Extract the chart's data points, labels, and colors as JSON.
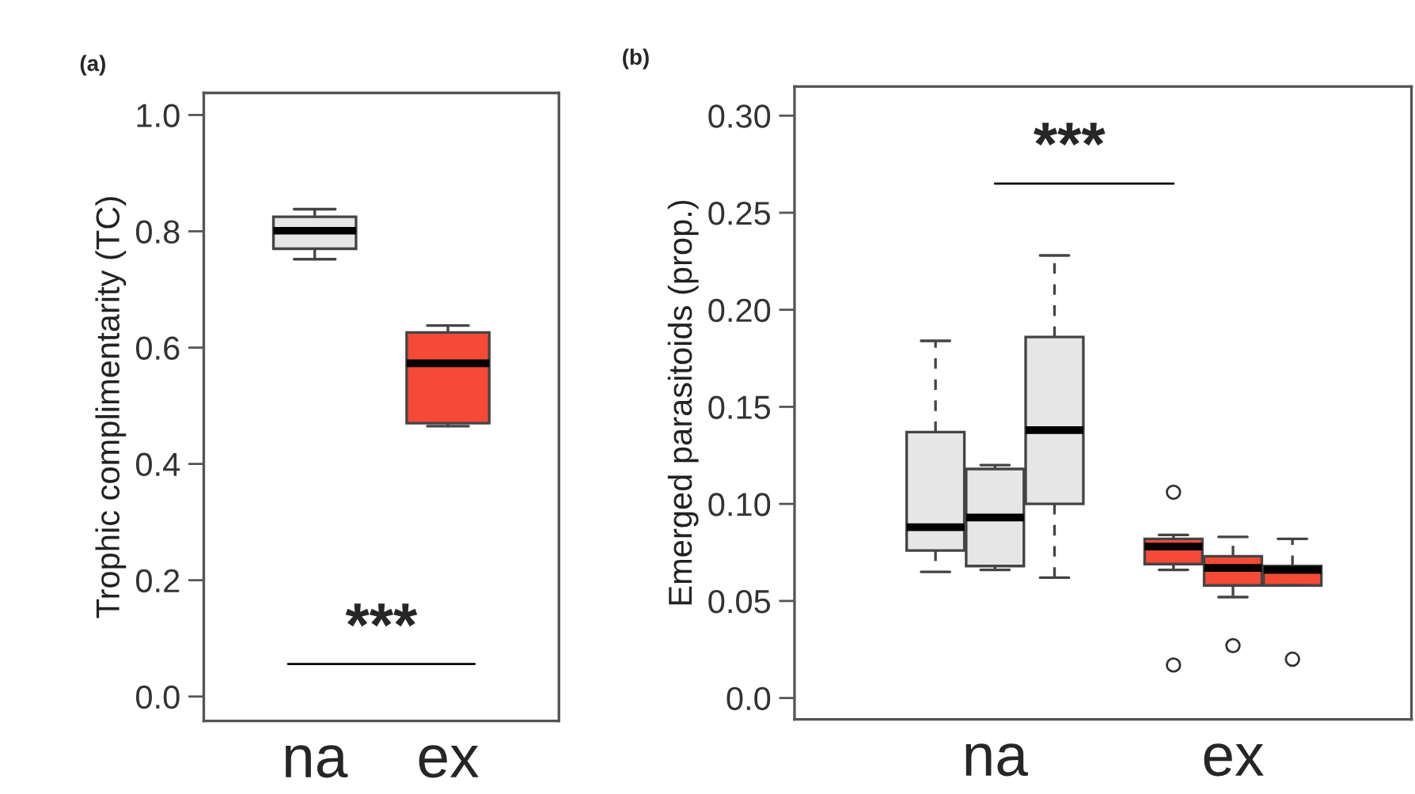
{
  "chart_data": [
    {
      "type": "box",
      "title": "(a)",
      "ylabel": "Trophic complimentarity (TC)",
      "categories": [
        "na",
        "ex"
      ],
      "boxes": [
        {
          "low": 0.752,
          "q1": 0.77,
          "median": 0.801,
          "q3": 0.825,
          "high": 0.838
        },
        {
          "low": 0.465,
          "q1": 0.47,
          "median": 0.573,
          "q3": 0.626,
          "high": 0.638
        }
      ],
      "colors": [
        "#e6e6e6",
        "#f44a36"
      ],
      "ylim": [
        -0.042,
        1.038
      ],
      "yticks": [
        {
          "value": 0,
          "label": "0.0"
        },
        0.2,
        0.4,
        0.6,
        0.8,
        {
          "value": 1,
          "label": "1.0"
        }
      ],
      "annotations": [
        "***"
      ]
    },
    {
      "type": "box",
      "title": "(b)",
      "ylabel": "Emerged parasitoids (prop.)",
      "categories": [
        null,
        "na",
        null,
        null,
        null,
        "ex",
        null
      ],
      "boxes": [
        {
          "low": 0.065,
          "q1": 0.076,
          "median": 0.088,
          "q3": 0.137,
          "high": 0.184
        },
        {
          "low": 0.066,
          "q1": 0.068,
          "median": 0.093,
          "q3": 0.118,
          "high": 0.12
        },
        {
          "low": 0.062,
          "q1": 0.1,
          "median": 0.138,
          "q3": 0.186,
          "high": 0.228
        },
        null,
        {
          "low": 0.066,
          "q1": 0.069,
          "median": 0.078,
          "q3": 0.082,
          "high": 0.084,
          "outliers": [
            0.106,
            0.017
          ]
        },
        {
          "low": 0.052,
          "q1": 0.058,
          "median": 0.067,
          "q3": 0.073,
          "high": 0.083,
          "outliers": [
            0.027
          ]
        },
        {
          "low": 0.058,
          "q1": 0.058,
          "median": 0.066,
          "q3": 0.068,
          "high": 0.082,
          "outliers": [
            0.02
          ]
        }
      ],
      "colors": [
        "#e6e6e6",
        "#e6e6e6",
        "#e6e6e6",
        null,
        "#f44a36",
        "#f44a36",
        "#f44a36"
      ],
      "line_style": "dashed",
      "ylim": [
        -0.011,
        0.315
      ],
      "yticks": [
        {
          "value": 0,
          "label": "0.0"
        },
        0.05,
        {
          "value": 0.1,
          "label": "0.10"
        },
        0.15,
        {
          "value": 0.2,
          "label": "0.20"
        },
        0.25,
        {
          "value": 0.3,
          "label": "0.30"
        }
      ],
      "annotations": [
        "***"
      ]
    }
  ]
}
